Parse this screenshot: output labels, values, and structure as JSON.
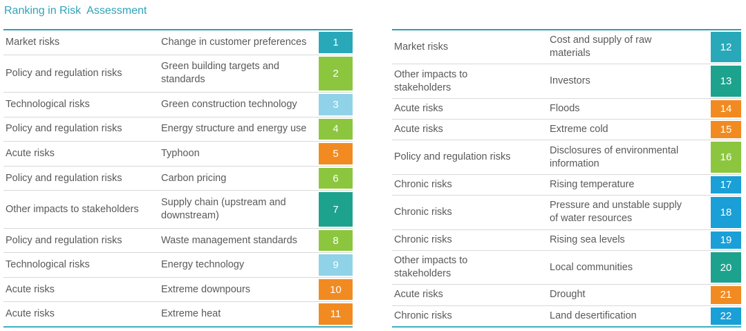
{
  "title": {
    "text": "Ranking in Risk  Assessment"
  },
  "theme": {
    "title_color": "#2EA3B7",
    "text_color": "#58595B",
    "badge_text_color": "#FFFFFF",
    "table_border_top": "#2B9DB1",
    "table_border_bottom": "#3EAFC3",
    "row_separator": "#D8D8D8",
    "background": "#FFFFFF"
  },
  "category_colors": {
    "Market risks": "#29A8BA",
    "Policy and regulation risks": "#8CC63F",
    "Technological risks": "#90D2E7",
    "Acute risks": "#F18B21",
    "Other impacts to stakeholders": "#1DA28E",
    "Chronic risks": "#1A9FD6"
  },
  "tables": {
    "left": {
      "rows": [
        {
          "category": "Market risks",
          "risk": "Change in customer preferences",
          "rank": "1"
        },
        {
          "category": "Policy and regulation risks",
          "risk": "Green building targets and standards",
          "rank": "2"
        },
        {
          "category": "Technological risks",
          "risk": "Green construction technology",
          "rank": "3"
        },
        {
          "category": "Policy and regulation risks",
          "risk": "Energy structure and energy use",
          "rank": "4"
        },
        {
          "category": "Acute risks",
          "risk": "Typhoon",
          "rank": "5"
        },
        {
          "category": "Policy and regulation risks",
          "risk": "Carbon pricing",
          "rank": "6"
        },
        {
          "category": "Other impacts to stakeholders",
          "risk": "Supply chain (upstream and downstream)",
          "rank": "7"
        },
        {
          "category": "Policy and regulation risks",
          "risk": "Waste management standards",
          "rank": "8"
        },
        {
          "category": "Technological risks",
          "risk": "Energy technology",
          "rank": "9"
        },
        {
          "category": "Acute risks",
          "risk": "Extreme downpours",
          "rank": "10"
        },
        {
          "category": "Acute risks",
          "risk": "Extreme heat",
          "rank": "11"
        }
      ]
    },
    "right": {
      "rows": [
        {
          "category": "Market risks",
          "risk": "Cost and supply of raw materials",
          "rank": "12"
        },
        {
          "category": "Other impacts to stakeholders",
          "risk": "Investors",
          "rank": "13"
        },
        {
          "category": "Acute risks",
          "risk": "Floods",
          "rank": "14"
        },
        {
          "category": "Acute risks",
          "risk": "Extreme cold",
          "rank": "15"
        },
        {
          "category": "Policy and regulation risks",
          "risk": "Disclosures of environmental information",
          "rank": "16"
        },
        {
          "category": "Chronic risks",
          "risk": "Rising temperature",
          "rank": "17"
        },
        {
          "category": "Chronic risks",
          "risk": "Pressure and unstable supply of water resources",
          "rank": "18"
        },
        {
          "category": "Chronic risks",
          "risk": "Rising sea levels",
          "rank": "19"
        },
        {
          "category": "Other impacts to stakeholders",
          "risk": "Local communities",
          "rank": "20"
        },
        {
          "category": "Acute risks",
          "risk": "Drought",
          "rank": "21"
        },
        {
          "category": "Chronic risks",
          "risk": "Land desertification",
          "rank": "22"
        }
      ]
    }
  }
}
